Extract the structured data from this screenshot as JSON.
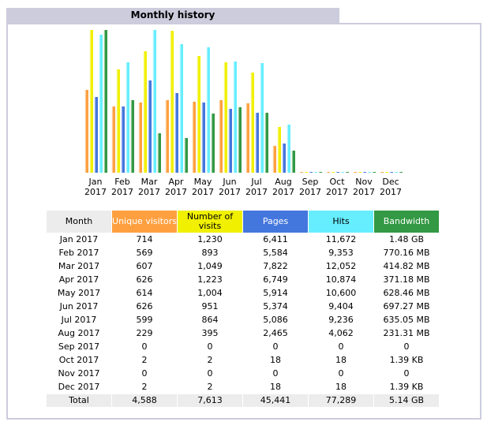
{
  "title": "Monthly history",
  "colors": {
    "unique_visitors": "#ffa040",
    "number_of_visits": "#f0f000",
    "pages": "#4477dd",
    "hits": "#66eeff",
    "bandwidth": "#339944",
    "panel_border": "#ccccdd",
    "row_shade": "#ececec"
  },
  "table": {
    "headers": {
      "month": "Month",
      "unique_visitors": "Unique visitors",
      "number_of_visits": "Number of visits",
      "pages": "Pages",
      "hits": "Hits",
      "bandwidth": "Bandwidth"
    },
    "rows": [
      {
        "month": "Jan 2017",
        "unique_visitors": "714",
        "number_of_visits": "1,230",
        "pages": "6,411",
        "hits": "11,672",
        "bandwidth": "1.48 GB"
      },
      {
        "month": "Feb 2017",
        "unique_visitors": "569",
        "number_of_visits": "893",
        "pages": "5,584",
        "hits": "9,353",
        "bandwidth": "770.16 MB"
      },
      {
        "month": "Mar 2017",
        "unique_visitors": "607",
        "number_of_visits": "1,049",
        "pages": "7,822",
        "hits": "12,052",
        "bandwidth": "414.82 MB"
      },
      {
        "month": "Apr 2017",
        "unique_visitors": "626",
        "number_of_visits": "1,223",
        "pages": "6,749",
        "hits": "10,874",
        "bandwidth": "371.18 MB"
      },
      {
        "month": "May 2017",
        "unique_visitors": "614",
        "number_of_visits": "1,004",
        "pages": "5,914",
        "hits": "10,600",
        "bandwidth": "628.46 MB"
      },
      {
        "month": "Jun 2017",
        "unique_visitors": "626",
        "number_of_visits": "951",
        "pages": "5,374",
        "hits": "9,404",
        "bandwidth": "697.27 MB"
      },
      {
        "month": "Jul 2017",
        "unique_visitors": "599",
        "number_of_visits": "864",
        "pages": "5,086",
        "hits": "9,236",
        "bandwidth": "635.05 MB"
      },
      {
        "month": "Aug 2017",
        "unique_visitors": "229",
        "number_of_visits": "395",
        "pages": "2,465",
        "hits": "4,062",
        "bandwidth": "231.31 MB"
      },
      {
        "month": "Sep 2017",
        "unique_visitors": "0",
        "number_of_visits": "0",
        "pages": "0",
        "hits": "0",
        "bandwidth": "0"
      },
      {
        "month": "Oct 2017",
        "unique_visitors": "2",
        "number_of_visits": "2",
        "pages": "18",
        "hits": "18",
        "bandwidth": "1.39 KB"
      },
      {
        "month": "Nov 2017",
        "unique_visitors": "0",
        "number_of_visits": "0",
        "pages": "0",
        "hits": "0",
        "bandwidth": "0"
      },
      {
        "month": "Dec 2017",
        "unique_visitors": "2",
        "number_of_visits": "2",
        "pages": "18",
        "hits": "18",
        "bandwidth": "1.39 KB"
      }
    ],
    "total": {
      "month": "Total",
      "unique_visitors": "4,588",
      "number_of_visits": "7,613",
      "pages": "45,441",
      "hits": "77,289",
      "bandwidth": "5.14 GB"
    }
  },
  "chart_data": {
    "type": "bar",
    "title": "",
    "xlabel": "",
    "ylabel": "",
    "grid": false,
    "categories": [
      {
        "month": "Jan",
        "year": "2017"
      },
      {
        "month": "Feb",
        "year": "2017"
      },
      {
        "month": "Mar",
        "year": "2017"
      },
      {
        "month": "Apr",
        "year": "2017"
      },
      {
        "month": "May",
        "year": "2017"
      },
      {
        "month": "Jun",
        "year": "2017"
      },
      {
        "month": "Jul",
        "year": "2017"
      },
      {
        "month": "Aug",
        "year": "2017"
      },
      {
        "month": "Sep",
        "year": "2017"
      },
      {
        "month": "Oct",
        "year": "2017"
      },
      {
        "month": "Nov",
        "year": "2017"
      },
      {
        "month": "Dec",
        "year": "2017"
      }
    ],
    "series": [
      {
        "name": "Unique visitors",
        "color": "#ffa040",
        "values": [
          714,
          569,
          607,
          626,
          614,
          626,
          599,
          229,
          0,
          2,
          0,
          2
        ]
      },
      {
        "name": "Number of visits",
        "color": "#f0f000",
        "values": [
          1230,
          893,
          1049,
          1223,
          1004,
          951,
          864,
          395,
          0,
          2,
          0,
          2
        ]
      },
      {
        "name": "Pages",
        "color": "#4477dd",
        "values": [
          6411,
          5584,
          7822,
          6749,
          5914,
          5374,
          5086,
          2465,
          0,
          18,
          0,
          18
        ]
      },
      {
        "name": "Hits",
        "color": "#66eeff",
        "values": [
          11672,
          9353,
          12052,
          10874,
          10600,
          9404,
          9236,
          4062,
          0,
          18,
          0,
          18
        ]
      },
      {
        "name": "Bandwidth",
        "color": "#339944",
        "values_mb": [
          1515.5,
          770.16,
          414.82,
          371.18,
          628.46,
          697.27,
          635.05,
          231.31,
          0,
          0.00136,
          0,
          0.00136
        ]
      }
    ]
  }
}
